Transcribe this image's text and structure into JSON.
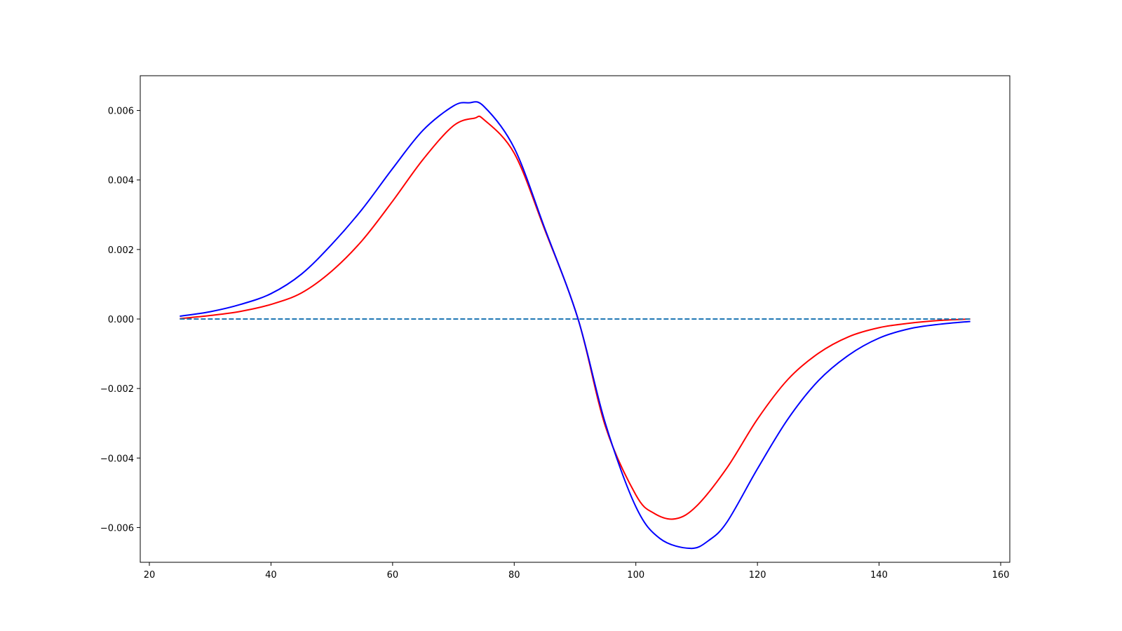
{
  "chart_data": {
    "type": "line",
    "title": "",
    "xlabel": "",
    "ylabel": "",
    "xlim": [
      18.5,
      161.5
    ],
    "ylim": [
      -0.007,
      0.007
    ],
    "xticks": [
      20,
      40,
      60,
      80,
      100,
      120,
      140,
      160
    ],
    "xtick_labels": [
      "20",
      "40",
      "60",
      "80",
      "100",
      "120",
      "140",
      "160"
    ],
    "yticks": [
      -0.006,
      -0.004,
      -0.002,
      0.0,
      0.002,
      0.004,
      0.006
    ],
    "ytick_labels": [
      "−0.006",
      "−0.004",
      "−0.002",
      "0.000",
      "0.002",
      "0.004",
      "0.006"
    ],
    "grid": false,
    "series": [
      {
        "color": "#ff0000",
        "style": "solid",
        "x": [
          25,
          30,
          35,
          40,
          45,
          50,
          55,
          60,
          65,
          70,
          73.5,
          75,
          80,
          85,
          90.5,
          95,
          100,
          103,
          106.5,
          110,
          115,
          120,
          125,
          130,
          135,
          140,
          145,
          150,
          155
        ],
        "y": [
          1e-05,
          0.0001,
          0.00022,
          0.00042,
          0.00075,
          0.00138,
          0.00226,
          0.00339,
          0.00459,
          0.00556,
          0.00578,
          0.00574,
          0.00477,
          0.00258,
          0.0,
          -0.00309,
          -0.00506,
          -0.00559,
          -0.00575,
          -0.00538,
          -0.00428,
          -0.00288,
          -0.00174,
          -0.00099,
          -0.00051,
          -0.00025,
          -0.00012,
          -4e-05,
          0.0
        ]
      },
      {
        "color": "#0000ff",
        "style": "solid",
        "x": [
          25,
          30,
          35,
          40,
          45,
          50,
          55,
          60,
          65,
          70,
          72.5,
          75,
          80,
          85,
          90.5,
          95,
          100,
          104,
          109,
          112,
          115,
          120,
          125,
          130,
          135,
          140,
          145,
          150,
          155
        ],
        "y": [
          8e-05,
          0.00021,
          0.00042,
          0.00073,
          0.00129,
          0.00215,
          0.00316,
          0.00433,
          0.00543,
          0.00613,
          0.00622,
          0.00612,
          0.00492,
          0.00262,
          0.0,
          -0.00301,
          -0.0054,
          -0.00632,
          -0.0066,
          -0.00637,
          -0.00584,
          -0.00431,
          -0.00288,
          -0.00178,
          -0.00104,
          -0.00055,
          -0.00028,
          -0.00015,
          -7e-05
        ]
      },
      {
        "color": "#1f77b4",
        "style": "dashed",
        "x": [
          25,
          155
        ],
        "y": [
          0.0,
          0.0
        ]
      }
    ]
  }
}
